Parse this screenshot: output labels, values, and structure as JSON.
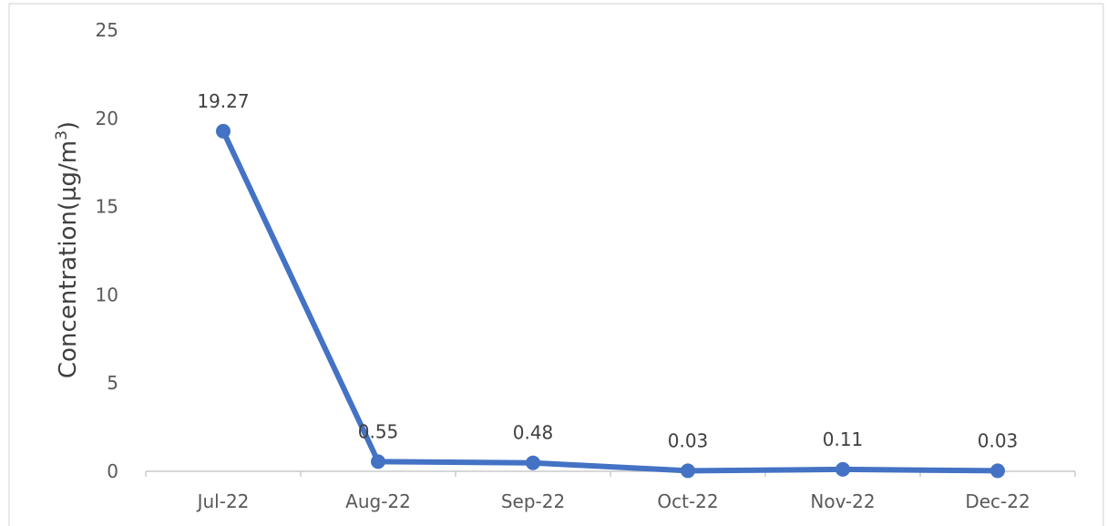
{
  "chart_data": {
    "type": "line",
    "categories": [
      "Jul-22",
      "Aug-22",
      "Sep-22",
      "Oct-22",
      "Nov-22",
      "Dec-22"
    ],
    "values": [
      19.27,
      0.55,
      0.48,
      0.03,
      0.11,
      0.03
    ],
    "data_labels": [
      "19.27",
      "0.55",
      "0.48",
      "0.03",
      "0.11",
      "0.03"
    ],
    "ylabel": "Concentration(µg/m",
    "ylabel_superscript": "3",
    "ylabel_suffix": ")",
    "ylim": [
      0,
      25
    ],
    "yticks": [
      "0",
      "5",
      "10",
      "15",
      "20",
      "25"
    ],
    "grid": false,
    "series_color": "#4472C4"
  }
}
